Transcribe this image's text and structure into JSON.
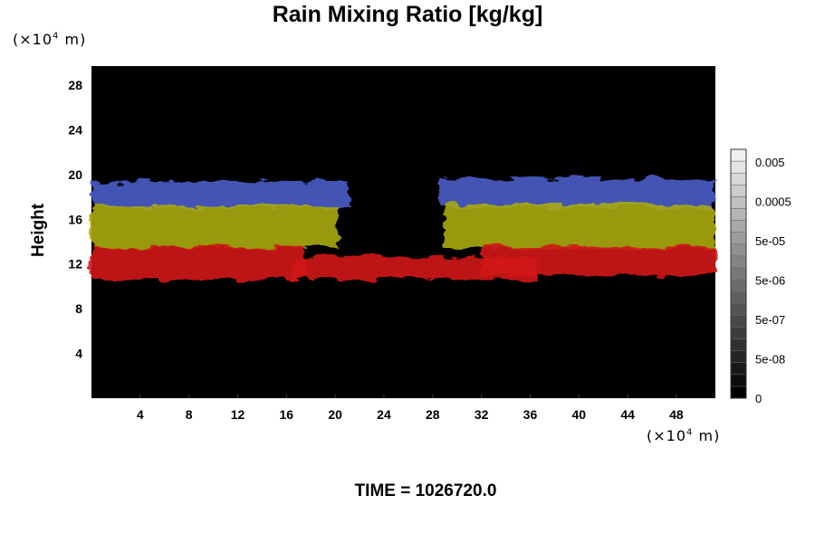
{
  "chart_data": {
    "type": "heatmap",
    "title": "Rain Mixing Ratio [kg/kg]",
    "ylabel": "Height",
    "x_unit": "m",
    "x_exponent": "4",
    "y_unit": "m",
    "y_exponent": "4",
    "x_ticks": [
      "4",
      "8",
      "12",
      "16",
      "20",
      "24",
      "28",
      "32",
      "36",
      "40",
      "44",
      "48"
    ],
    "y_ticks": [
      "4",
      "8",
      "12",
      "16",
      "20",
      "24",
      "28"
    ],
    "xlim": [
      0,
      51.2
    ],
    "ylim": [
      0,
      29.7
    ],
    "colorbar_ticks": [
      "0.005",
      "0.0005",
      "5e-05",
      "5e-06",
      "5e-07",
      "5e-08",
      "0"
    ],
    "bands": [
      {
        "name": "blue",
        "color": "#4a5cc8",
        "ranges": [
          [
            0,
            21.2,
            17.0,
            19.4
          ],
          [
            28.5,
            51.2,
            17.0,
            19.6
          ]
        ]
      },
      {
        "name": "yellow",
        "color": "#a8aa10",
        "ranges": [
          [
            0,
            20.2,
            13.4,
            17.2
          ],
          [
            29.0,
            51.2,
            13.4,
            17.4
          ]
        ]
      },
      {
        "name": "red",
        "color": "#d21616",
        "ranges": [
          [
            0,
            17.5,
            10.6,
            13.5
          ],
          [
            32.0,
            51.2,
            11.0,
            13.6
          ],
          [
            16.5,
            36.5,
            10.6,
            12.6
          ]
        ]
      }
    ],
    "footer": "TIME = 1026720.0"
  }
}
